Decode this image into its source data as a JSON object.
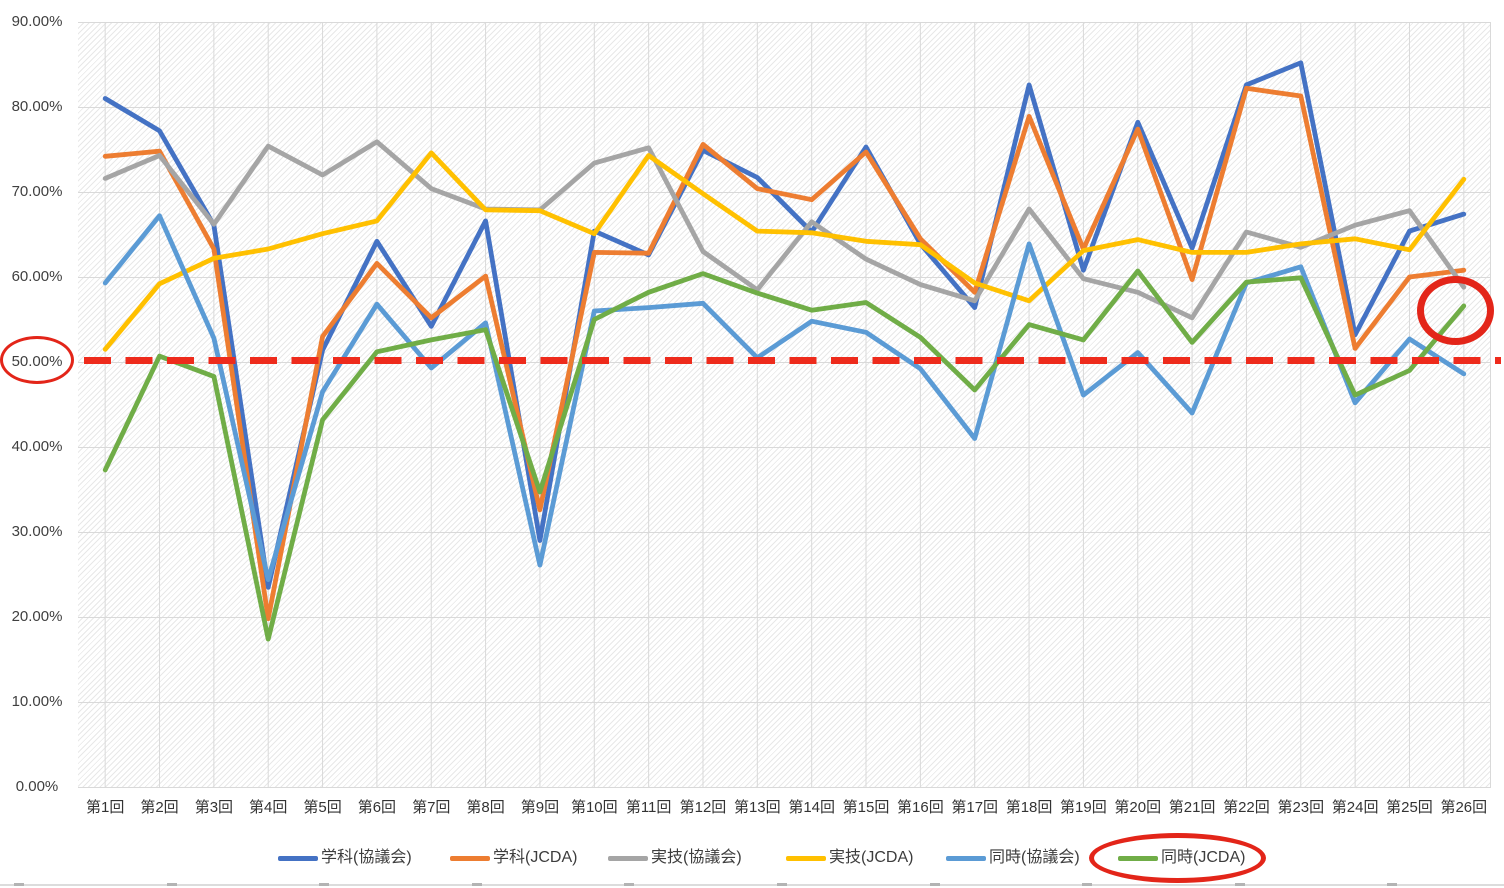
{
  "red_annotation_color": "#E32519",
  "chart_data": {
    "type": "line",
    "title": "",
    "grid": true,
    "legend_position": "bottom",
    "categories": [
      "第1回",
      "第2回",
      "第3回",
      "第4回",
      "第5回",
      "第6回",
      "第7回",
      "第8回",
      "第9回",
      "第10回",
      "第11回",
      "第12回",
      "第13回",
      "第14回",
      "第15回",
      "第16回",
      "第17回",
      "第18回",
      "第19回",
      "第20回",
      "第21回",
      "第22回",
      "第23回",
      "第24回",
      "第25回",
      "第26回"
    ],
    "y_axis": {
      "min": 0,
      "max": 90,
      "step": 10,
      "tick_labels": [
        "90.00%",
        "80.00%",
        "70.00%",
        "60.00%",
        "50.00%",
        "40.00%",
        "30.00%",
        "20.00%",
        "10.00%",
        "0.00%"
      ]
    },
    "series": [
      {
        "key": "gakka-kyogikai",
        "name": "学科(協議会)",
        "color": "#4472C4",
        "values": [
          81.0,
          77.2,
          66.1,
          23.5,
          51.4,
          64.2,
          54.2,
          66.6,
          29.0,
          65.4,
          62.6,
          74.9,
          71.7,
          65.3,
          75.3,
          63.9,
          56.4,
          82.6,
          60.8,
          78.2,
          63.4,
          82.6,
          85.2,
          53.2,
          65.4,
          67.4
        ]
      },
      {
        "key": "gakka-jcda",
        "name": "学科(JCDA)",
        "color": "#ED7D31",
        "values": [
          74.2,
          74.8,
          63.3,
          19.8,
          53.0,
          61.6,
          55.2,
          60.1,
          32.6,
          62.9,
          62.8,
          75.6,
          70.4,
          69.1,
          74.7,
          64.5,
          58.2,
          78.9,
          63.3,
          77.4,
          59.7,
          82.2,
          81.3,
          51.6,
          60.0,
          60.8
        ]
      },
      {
        "key": "jitsugi-kyogikai",
        "name": "実技(協議会)",
        "color": "#A5A5A5",
        "values": [
          71.6,
          74.3,
          66.2,
          75.4,
          72.0,
          75.9,
          70.4,
          68.0,
          67.9,
          73.4,
          75.2,
          63.0,
          58.5,
          66.5,
          62.1,
          59.1,
          57.2,
          68.0,
          59.8,
          58.2,
          55.2,
          65.3,
          63.5,
          66.1,
          67.8,
          58.8
        ]
      },
      {
        "key": "jitsugi-jcda",
        "name": "実技(JCDA)",
        "color": "#FFC000",
        "values": [
          51.5,
          59.2,
          62.2,
          63.3,
          65.1,
          66.6,
          74.6,
          67.9,
          67.8,
          65.1,
          74.3,
          69.8,
          65.4,
          65.2,
          64.2,
          63.8,
          59.3,
          57.2,
          63.1,
          64.4,
          62.9,
          62.9,
          63.9,
          64.5,
          63.2,
          71.5
        ]
      },
      {
        "key": "doji-kyogikai",
        "name": "同時(協議会)",
        "color": "#5B9BD5",
        "values": [
          59.3,
          67.2,
          52.8,
          24.4,
          46.5,
          56.8,
          49.3,
          54.6,
          26.1,
          56.0,
          56.4,
          56.9,
          50.5,
          54.8,
          53.5,
          49.2,
          41.0,
          63.9,
          46.1,
          51.1,
          44.0,
          59.3,
          61.2,
          45.2,
          52.7,
          48.6
        ]
      },
      {
        "key": "doji-jcda",
        "name": "同時(JCDA)",
        "color": "#70AD47",
        "values": [
          37.3,
          50.7,
          48.3,
          17.4,
          43.2,
          51.2,
          52.6,
          53.8,
          34.7,
          55.0,
          58.2,
          60.4,
          58.1,
          56.1,
          57.0,
          52.9,
          46.7,
          54.4,
          52.6,
          60.7,
          52.3,
          59.4,
          59.9,
          46.1,
          49.0,
          56.6
        ]
      }
    ],
    "reference_line": {
      "value": 50,
      "style": "dashed",
      "color": "#EE2B1C"
    },
    "annotations": [
      {
        "type": "ellipse",
        "target": "y-axis-label-50.00%"
      },
      {
        "type": "circle",
        "target": "last-point-同時(JCDA)"
      },
      {
        "type": "ellipse",
        "target": "legend-item-同時(JCDA)"
      }
    ]
  }
}
